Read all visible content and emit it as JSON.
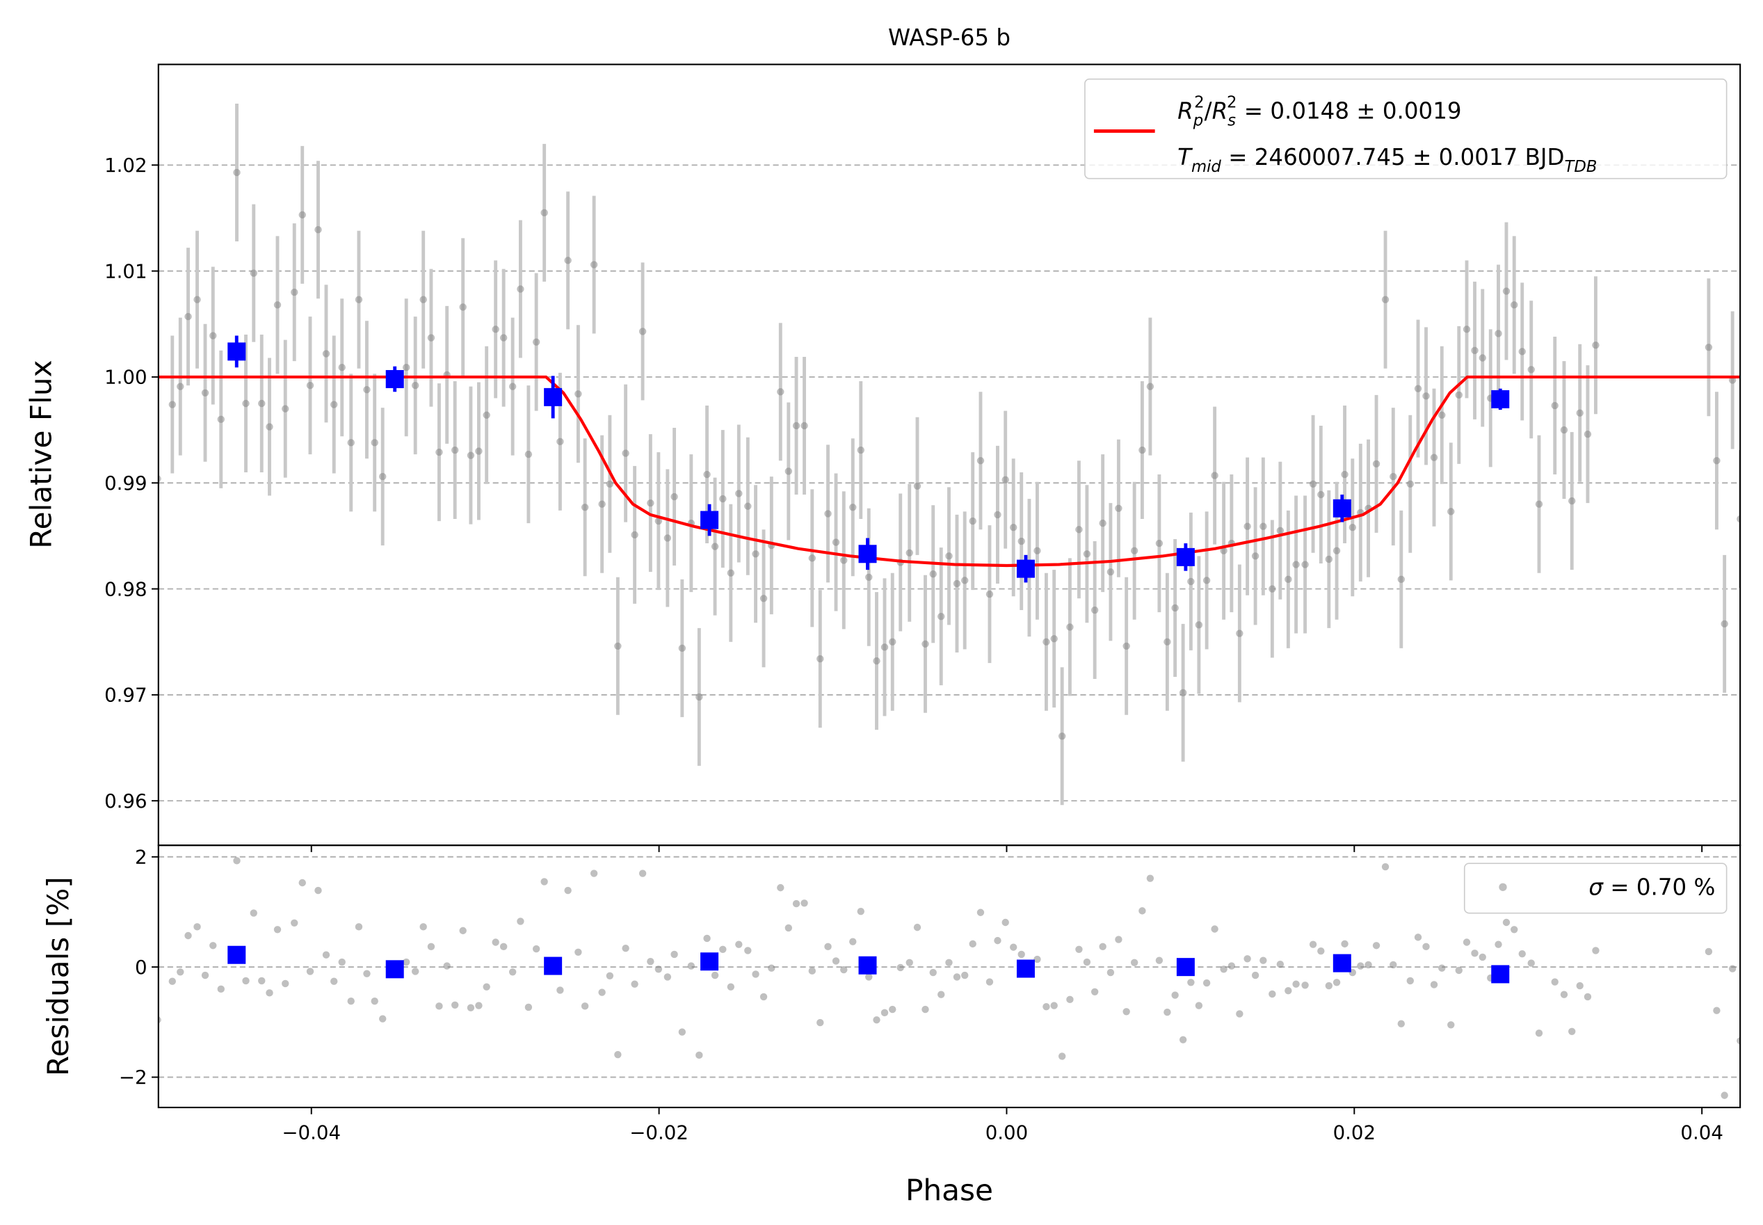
{
  "chart_data": [
    {
      "type": "scatter",
      "title": "WASP-65 b",
      "ylabel": "Relative Flux",
      "xlim": [
        -0.0488,
        0.0422
      ],
      "ylim": [
        0.9558,
        1.0295
      ],
      "yticks": [
        0.96,
        0.97,
        0.98,
        0.99,
        {
          "value": 1.0,
          "label": "1.00"
        },
        1.01,
        1.02
      ],
      "grid": true,
      "legend": "upper right",
      "series": [
        {
          "style": "points",
          "color": "#808080",
          "errcolor": "#c8c8c8",
          "yerr": 0.0065,
          "x": [
            -0.04885,
            -0.048,
            -0.04754,
            -0.04709,
            -0.04657,
            -0.04611,
            -0.04566,
            -0.0452,
            -0.04429,
            -0.04377,
            -0.04332,
            -0.04286,
            -0.04241,
            -0.04195,
            -0.0415,
            -0.04098,
            -0.04052,
            -0.04007,
            -0.03961,
            -0.03915,
            -0.0387,
            -0.03824,
            -0.03772,
            -0.03727,
            -0.03681,
            -0.03636,
            -0.0359,
            -0.03454,
            -0.03402,
            -0.03356,
            -0.03311,
            -0.03265,
            -0.0322,
            -0.03174,
            -0.03128,
            -0.03083,
            -0.03037,
            -0.02992,
            -0.0294,
            -0.02894,
            -0.02842,
            -0.02797,
            -0.02751,
            -0.02706,
            -0.0266,
            -0.02569,
            -0.02524,
            -0.02465,
            -0.02426,
            -0.02374,
            -0.02328,
            -0.02283,
            -0.02237,
            -0.02192,
            -0.0214,
            -0.02094,
            -0.02049,
            -0.02003,
            -0.01951,
            -0.01912,
            -0.01867,
            -0.01815,
            -0.01769,
            -0.01724,
            -0.01678,
            -0.01633,
            -0.01587,
            -0.01541,
            -0.01489,
            -0.01444,
            -0.01398,
            -0.01353,
            -0.01301,
            -0.01255,
            -0.0121,
            -0.01164,
            -0.01119,
            -0.01073,
            -0.01028,
            -0.00982,
            -0.00937,
            -0.00885,
            -0.00839,
            -0.00793,
            -0.00748,
            -0.00702,
            -0.00657,
            -0.00611,
            -0.00559,
            -0.00514,
            -0.00468,
            -0.00423,
            -0.00377,
            -0.00332,
            -0.00286,
            -0.00241,
            -0.00195,
            -0.0015,
            -0.00098,
            -0.00052,
            -7e-05,
            0.00039,
            0.00085,
            0.0013,
            0.00176,
            0.00228,
            0.00273,
            0.00319,
            0.00364,
            0.00416,
            0.00462,
            0.00507,
            0.00553,
            0.00598,
            0.00644,
            0.00689,
            0.00735,
            0.0078,
            0.00826,
            0.00878,
            0.00924,
            0.00969,
            0.01015,
            0.0106,
            0.01106,
            0.01151,
            0.01197,
            0.01249,
            0.01294,
            0.0134,
            0.01385,
            0.01431,
            0.01476,
            0.01528,
            0.01574,
            0.0162,
            0.01665,
            0.01717,
            0.01763,
            0.01808,
            0.01854,
            0.01899,
            0.01945,
            0.0199,
            0.02036,
            0.02081,
            0.02127,
            0.02179,
            0.02224,
            0.0227,
            0.02322,
            0.02367,
            0.02413,
            0.02459,
            0.02504,
            0.02556,
            0.02602,
            0.02647,
            0.02693,
            0.02738,
            0.02784,
            0.02829,
            0.02875,
            0.0292,
            0.02966,
            0.03018,
            0.03063,
            0.03154,
            0.03207,
            0.03252,
            0.03298,
            0.03343,
            0.03389,
            0.04039,
            0.04085,
            0.0413,
            0.04176,
            0.04221
          ],
          "values": [
            0.9904,
            0.9974,
            0.9991,
            1.0057,
            1.0073,
            0.9985,
            1.0039,
            0.996,
            1.0193,
            0.9975,
            1.0098,
            0.9975,
            0.9953,
            1.0068,
            0.997,
            1.008,
            1.0153,
            0.9992,
            1.0139,
            1.0022,
            0.9974,
            1.0009,
            0.9938,
            1.0073,
            0.9988,
            0.9938,
            0.9906,
            1.0009,
            0.9992,
            1.0073,
            1.0037,
            0.9929,
            1.0002,
            0.9931,
            1.0066,
            0.9926,
            0.993,
            0.9964,
            1.0045,
            1.0037,
            0.9991,
            1.0083,
            0.9927,
            1.0033,
            1.0155,
            0.9939,
            1.011,
            0.9984,
            0.9877,
            1.0106,
            0.988,
            0.9899,
            0.9746,
            0.9928,
            0.9851,
            1.0043,
            0.9881,
            0.9864,
            0.9848,
            0.9887,
            0.9744,
            0.9862,
            0.9698,
            0.9908,
            0.984,
            0.9885,
            0.9815,
            0.989,
            0.9878,
            0.9833,
            0.9791,
            0.9841,
            0.9986,
            0.9911,
            0.9954,
            0.9954,
            0.9829,
            0.9734,
            0.9871,
            0.9844,
            0.9827,
            0.9877,
            0.9931,
            0.9811,
            0.9732,
            0.9745,
            0.975,
            0.9825,
            0.9834,
            0.9897,
            0.9748,
            0.9814,
            0.9774,
            0.9831,
            0.9805,
            0.9808,
            0.9864,
            0.9921,
            0.9795,
            0.987,
            0.9903,
            0.9858,
            0.9845,
            0.982,
            0.9836,
            0.975,
            0.9753,
            0.9661,
            0.9764,
            0.9856,
            0.9833,
            0.978,
            0.9862,
            0.9816,
            0.9876,
            0.9746,
            0.9836,
            0.9931,
            0.9991,
            0.9843,
            0.975,
            0.9782,
            0.9702,
            0.9807,
            0.9766,
            0.9808,
            0.9907,
            0.9836,
            0.9843,
            0.9758,
            0.9859,
            0.9831,
            0.9859,
            0.98,
            0.9855,
            0.9809,
            0.9823,
            0.9823,
            0.9899,
            0.9889,
            0.9828,
            0.9836,
            0.9908,
            0.9858,
            0.9872,
            0.9876,
            0.9918,
            1.0073,
            0.9906,
            0.9809,
            0.9899,
            0.9989,
            0.9982,
            0.9924,
            0.9964,
            0.9873,
            0.9983,
            1.0045,
            1.0025,
            1.0018,
            0.998,
            1.0041,
            1.0081,
            1.0068,
            1.0024,
            1.0007,
            0.988,
            0.9973,
            0.995,
            0.9883,
            0.9966,
            0.9946,
            1.003,
            1.0028,
            0.9921,
            0.9767,
            0.9997,
            0.9866
          ]
        },
        {
          "style": "line",
          "color": "#ff0000",
          "legend_lines": [
            [
              "R",
              "p",
              "2",
              "/",
              "R",
              "s",
              "2",
              " = 0.0148 ± 0.0019"
            ],
            [
              "T",
              "mid",
              " = 2460007.745 ± 0.0017 BJD",
              "TDB"
            ]
          ],
          "x": [
            -0.0488,
            -0.0265,
            -0.0255,
            -0.0245,
            -0.0235,
            -0.0225,
            -0.0215,
            -0.0205,
            -0.018,
            -0.015,
            -0.012,
            -0.009,
            -0.006,
            -0.003,
            0,
            0.003,
            0.006,
            0.009,
            0.012,
            0.015,
            0.018,
            0.0205,
            0.0215,
            0.0225,
            0.0235,
            0.0245,
            0.0255,
            0.0265,
            0.0422
          ],
          "values": [
            1,
            1,
            0.9985,
            0.996,
            0.9931,
            0.99,
            0.988,
            0.987,
            0.9859,
            0.9848,
            0.9838,
            0.9831,
            0.9826,
            0.9823,
            0.9822,
            0.9823,
            0.9826,
            0.9831,
            0.9838,
            0.9848,
            0.9859,
            0.987,
            0.988,
            0.99,
            0.9931,
            0.996,
            0.9985,
            1,
            1
          ]
        },
        {
          "style": "squares",
          "color": "#0000ff",
          "x": [
            -0.0443,
            -0.0352,
            -0.0261,
            -0.0171,
            -0.008,
            0.0011,
            0.0103,
            0.0193,
            0.0284
          ],
          "values": [
            1.0024,
            0.9998,
            0.9981,
            0.9865,
            0.9833,
            0.9819,
            0.983,
            0.9876,
            0.9979
          ],
          "errors": [
            0.0015,
            0.0012,
            0.002,
            0.0015,
            0.0015,
            0.0013,
            0.0013,
            0.0013,
            0.001
          ]
        }
      ]
    },
    {
      "type": "scatter",
      "ylabel": "Residuals [%]",
      "xlabel": "Phase",
      "xlim": [
        -0.0488,
        0.0422
      ],
      "ylim": [
        -2.55,
        2.21
      ],
      "xticks": [
        {
          "value": -0.04,
          "label": "−0.04"
        },
        {
          "value": -0.02,
          "label": "−0.02"
        },
        {
          "value": 0,
          "label": "0.00"
        },
        0.02,
        0.04
      ],
      "yticks": [
        {
          "value": -2,
          "label": "−2"
        },
        0,
        2
      ],
      "grid": true,
      "legend": "upper right",
      "series": [
        {
          "style": "points",
          "color": "#808080",
          "legend_lines": [
            [
              "σ",
              " = 0.70 %"
            ]
          ],
          "x": [
            -0.04885,
            -0.048,
            -0.04754,
            -0.04709,
            -0.04657,
            -0.04611,
            -0.04566,
            -0.0452,
            -0.04429,
            -0.04377,
            -0.04332,
            -0.04286,
            -0.04241,
            -0.04195,
            -0.0415,
            -0.04098,
            -0.04052,
            -0.04007,
            -0.03961,
            -0.03915,
            -0.0387,
            -0.03824,
            -0.03772,
            -0.03727,
            -0.03681,
            -0.03636,
            -0.0359,
            -0.03454,
            -0.03402,
            -0.03356,
            -0.03311,
            -0.03265,
            -0.0322,
            -0.03174,
            -0.03128,
            -0.03083,
            -0.03037,
            -0.02992,
            -0.0294,
            -0.02894,
            -0.02842,
            -0.02797,
            -0.02751,
            -0.02706,
            -0.0266,
            -0.02569,
            -0.02524,
            -0.02465,
            -0.02426,
            -0.02374,
            -0.02328,
            -0.02283,
            -0.02237,
            -0.02192,
            -0.0214,
            -0.02094,
            -0.02049,
            -0.02003,
            -0.01951,
            -0.01912,
            -0.01867,
            -0.01815,
            -0.01769,
            -0.01724,
            -0.01678,
            -0.01633,
            -0.01587,
            -0.01541,
            -0.01489,
            -0.01444,
            -0.01398,
            -0.01353,
            -0.01301,
            -0.01255,
            -0.0121,
            -0.01164,
            -0.01119,
            -0.01073,
            -0.01028,
            -0.00982,
            -0.00937,
            -0.00885,
            -0.00839,
            -0.00793,
            -0.00748,
            -0.00702,
            -0.00657,
            -0.00611,
            -0.00559,
            -0.00514,
            -0.00468,
            -0.00423,
            -0.00377,
            -0.00332,
            -0.00286,
            -0.00241,
            -0.00195,
            -0.0015,
            -0.00098,
            -0.00052,
            -7e-05,
            0.00039,
            0.00085,
            0.0013,
            0.00176,
            0.00228,
            0.00273,
            0.00319,
            0.00364,
            0.00416,
            0.00462,
            0.00507,
            0.00553,
            0.00598,
            0.00644,
            0.00689,
            0.00735,
            0.0078,
            0.00826,
            0.00878,
            0.00924,
            0.00969,
            0.01015,
            0.0106,
            0.01106,
            0.01151,
            0.01197,
            0.01249,
            0.01294,
            0.0134,
            0.01385,
            0.01431,
            0.01476,
            0.01528,
            0.01574,
            0.0162,
            0.01665,
            0.01717,
            0.01763,
            0.01808,
            0.01854,
            0.01899,
            0.01945,
            0.0199,
            0.02036,
            0.02081,
            0.02127,
            0.02179,
            0.02224,
            0.0227,
            0.02322,
            0.02367,
            0.02413,
            0.02459,
            0.02504,
            0.02556,
            0.02602,
            0.02647,
            0.02693,
            0.02738,
            0.02784,
            0.02829,
            0.02875,
            0.0292,
            0.02966,
            0.03018,
            0.03063,
            0.03154,
            0.03207,
            0.03252,
            0.03298,
            0.03343,
            0.03389,
            0.04039,
            0.04085,
            0.0413,
            0.04176,
            0.04221
          ],
          "values": [
            -0.96,
            -0.26,
            -0.09,
            0.57,
            0.73,
            -0.15,
            0.39,
            -0.4,
            1.93,
            -0.25,
            0.98,
            -0.25,
            -0.47,
            0.68,
            -0.3,
            0.8,
            1.53,
            -0.08,
            1.39,
            0.22,
            -0.26,
            0.09,
            -0.62,
            0.73,
            -0.12,
            -0.62,
            -0.94,
            0.09,
            -0.08,
            0.73,
            0.37,
            -0.71,
            0.02,
            -0.69,
            0.66,
            -0.74,
            -0.7,
            -0.36,
            0.45,
            0.37,
            -0.09,
            0.83,
            -0.73,
            0.33,
            1.55,
            -0.42,
            1.39,
            0.27,
            -0.71,
            1.7,
            -0.46,
            -0.16,
            -1.59,
            0.34,
            -0.31,
            1.7,
            0.1,
            -0.04,
            -0.18,
            0.23,
            -1.18,
            0.02,
            -1.6,
            0.52,
            -0.15,
            0.32,
            -0.36,
            0.41,
            0.3,
            -0.13,
            -0.54,
            -0.02,
            1.44,
            0.71,
            1.15,
            1.16,
            -0.07,
            -1.01,
            0.37,
            0.11,
            -0.05,
            0.46,
            1.01,
            -0.18,
            -0.96,
            -0.83,
            -0.77,
            -0.01,
            0.08,
            0.72,
            -0.77,
            -0.1,
            -0.5,
            0.08,
            -0.18,
            -0.15,
            0.42,
            0.99,
            -0.27,
            0.48,
            0.81,
            0.36,
            0.23,
            -0.02,
            0.14,
            -0.72,
            -0.7,
            -1.62,
            -0.59,
            0.32,
            0.09,
            -0.45,
            0.37,
            -0.1,
            0.5,
            -0.81,
            0.08,
            1.02,
            1.61,
            0.12,
            -0.82,
            -0.51,
            -1.32,
            -0.28,
            -0.7,
            -0.29,
            0.69,
            -0.04,
            0.02,
            -0.85,
            0.15,
            -0.15,
            0.12,
            -0.49,
            0.05,
            -0.43,
            -0.31,
            -0.33,
            0.41,
            0.29,
            -0.34,
            -0.28,
            0.42,
            -0.1,
            0.02,
            0.04,
            0.39,
            1.82,
            0.04,
            -1.03,
            -0.25,
            0.54,
            0.37,
            -0.32,
            -0.02,
            -1.05,
            -0.06,
            0.45,
            0.25,
            0.18,
            -0.2,
            0.41,
            0.81,
            0.68,
            0.24,
            0.07,
            -1.2,
            -0.27,
            -0.5,
            -1.17,
            -0.34,
            -0.54,
            0.3,
            0.28,
            -0.79,
            -2.33,
            -0.03,
            -1.34
          ]
        },
        {
          "style": "squares",
          "color": "#0000ff",
          "x": [
            -0.0443,
            -0.0352,
            -0.0261,
            -0.0171,
            -0.008,
            0.0011,
            0.0103,
            0.0193,
            0.0284
          ],
          "values": [
            0.22,
            -0.04,
            0.02,
            0.1,
            0.03,
            -0.03,
            0,
            0.07,
            -0.13
          ]
        }
      ]
    }
  ]
}
